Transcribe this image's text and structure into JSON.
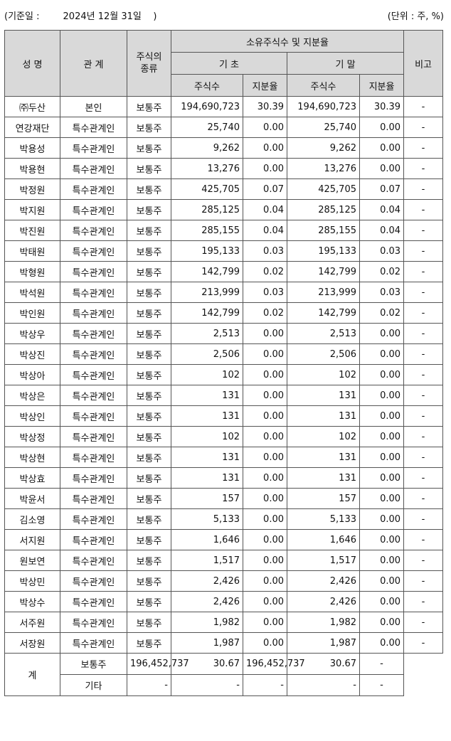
{
  "header": {
    "date_label": "(기준일 :        2024년 12월 31일    )",
    "unit_label": "(단위 : 주, %)"
  },
  "columns": {
    "name": "성 명",
    "relation": "관 계",
    "stock_type": "주식의\n종류",
    "owned_group": "소유주식수 및 지분율",
    "begin": "기 초",
    "end": "기 말",
    "shares": "주식수",
    "ratio": "지분율",
    "note": "비고"
  },
  "rows": [
    [
      "㈜두산",
      "본인",
      "보통주",
      "194,690,723",
      "30.39",
      "194,690,723",
      "30.39",
      "-"
    ],
    [
      "연강재단",
      "특수관계인",
      "보통주",
      "25,740",
      "0.00",
      "25,740",
      "0.00",
      "-"
    ],
    [
      "박용성",
      "특수관계인",
      "보통주",
      "9,262",
      "0.00",
      "9,262",
      "0.00",
      "-"
    ],
    [
      "박용현",
      "특수관계인",
      "보통주",
      "13,276",
      "0.00",
      "13,276",
      "0.00",
      "-"
    ],
    [
      "박정원",
      "특수관계인",
      "보통주",
      "425,705",
      "0.07",
      "425,705",
      "0.07",
      "-"
    ],
    [
      "박지원",
      "특수관계인",
      "보통주",
      "285,125",
      "0.04",
      "285,125",
      "0.04",
      "-"
    ],
    [
      "박진원",
      "특수관계인",
      "보통주",
      "285,155",
      "0.04",
      "285,155",
      "0.04",
      "-"
    ],
    [
      "박태원",
      "특수관계인",
      "보통주",
      "195,133",
      "0.03",
      "195,133",
      "0.03",
      "-"
    ],
    [
      "박형원",
      "특수관계인",
      "보통주",
      "142,799",
      "0.02",
      "142,799",
      "0.02",
      "-"
    ],
    [
      "박석원",
      "특수관계인",
      "보통주",
      "213,999",
      "0.03",
      "213,999",
      "0.03",
      "-"
    ],
    [
      "박인원",
      "특수관계인",
      "보통주",
      "142,799",
      "0.02",
      "142,799",
      "0.02",
      "-"
    ],
    [
      "박상우",
      "특수관계인",
      "보통주",
      "2,513",
      "0.00",
      "2,513",
      "0.00",
      "-"
    ],
    [
      "박상진",
      "특수관계인",
      "보통주",
      "2,506",
      "0.00",
      "2,506",
      "0.00",
      "-"
    ],
    [
      "박상아",
      "특수관계인",
      "보통주",
      "102",
      "0.00",
      "102",
      "0.00",
      "-"
    ],
    [
      "박상은",
      "특수관계인",
      "보통주",
      "131",
      "0.00",
      "131",
      "0.00",
      "-"
    ],
    [
      "박상인",
      "특수관계인",
      "보통주",
      "131",
      "0.00",
      "131",
      "0.00",
      "-"
    ],
    [
      "박상정",
      "특수관계인",
      "보통주",
      "102",
      "0.00",
      "102",
      "0.00",
      "-"
    ],
    [
      "박상현",
      "특수관계인",
      "보통주",
      "131",
      "0.00",
      "131",
      "0.00",
      "-"
    ],
    [
      "박상효",
      "특수관계인",
      "보통주",
      "131",
      "0.00",
      "131",
      "0.00",
      "-"
    ],
    [
      "박윤서",
      "특수관계인",
      "보통주",
      "157",
      "0.00",
      "157",
      "0.00",
      "-"
    ],
    [
      "김소영",
      "특수관계인",
      "보통주",
      "5,133",
      "0.00",
      "5,133",
      "0.00",
      "-"
    ],
    [
      "서지원",
      "특수관계인",
      "보통주",
      "1,646",
      "0.00",
      "1,646",
      "0.00",
      "-"
    ],
    [
      "원보연",
      "특수관계인",
      "보통주",
      "1,517",
      "0.00",
      "1,517",
      "0.00",
      "-"
    ],
    [
      "박상민",
      "특수관계인",
      "보통주",
      "2,426",
      "0.00",
      "2,426",
      "0.00",
      "-"
    ],
    [
      "박상수",
      "특수관계인",
      "보통주",
      "2,426",
      "0.00",
      "2,426",
      "0.00",
      "-"
    ],
    [
      "서주원",
      "특수관계인",
      "보통주",
      "1,982",
      "0.00",
      "1,982",
      "0.00",
      "-"
    ],
    [
      "서장원",
      "특수관계인",
      "보통주",
      "1,987",
      "0.00",
      "1,987",
      "0.00",
      "-"
    ]
  ],
  "total": {
    "label": "계",
    "rows": [
      [
        "보통주",
        "196,452,737",
        "30.67",
        "196,452,737",
        "30.67",
        "-"
      ],
      [
        "기타",
        "-",
        "-",
        "-",
        "-",
        "-"
      ]
    ]
  }
}
